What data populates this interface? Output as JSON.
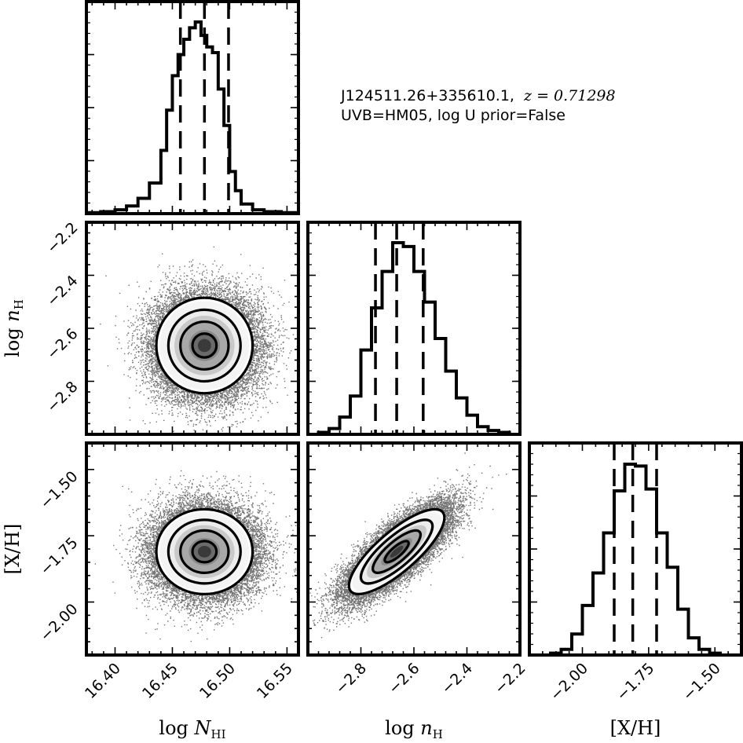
{
  "annotation": {
    "line1_object": "J124511.26+335610.1,",
    "line1_redshift": "z = 0.71298",
    "line2": "UVB=HM05, log U prior=False"
  },
  "chart_data": {
    "type": "corner",
    "parameters": [
      {
        "name": "logNHI",
        "label": "log N_HI",
        "label_main": "log N",
        "label_sub": "HI",
        "range": [
          16.375,
          16.56
        ],
        "ticks": [
          16.4,
          16.45,
          16.5,
          16.55
        ],
        "tick_labels": [
          "16.40",
          "16.45",
          "16.50",
          "16.55"
        ],
        "median": 16.478,
        "q16": 16.457,
        "q84": 16.499,
        "sigma": 0.021
      },
      {
        "name": "lognH",
        "label": "log n_H",
        "label_main": "log n",
        "label_sub": "H",
        "range": [
          -3.0,
          -2.2
        ],
        "ticks": [
          -2.8,
          -2.6,
          -2.4,
          -2.2
        ],
        "tick_labels": [
          "−2.8",
          "−2.6",
          "−2.4",
          "−2.2"
        ],
        "median": -2.665,
        "q16": -2.745,
        "q84": -2.565,
        "sigma": 0.09
      },
      {
        "name": "XH",
        "label": "[X/H]",
        "label_main": "[X/H]",
        "label_sub": "",
        "range": [
          -2.2,
          -1.4
        ],
        "ticks": [
          -2.0,
          -1.75,
          -1.5
        ],
        "tick_labels": [
          "−2.00",
          "−1.75",
          "−1.50"
        ],
        "median": -1.81,
        "q16": -1.88,
        "q84": -1.72,
        "sigma": 0.08
      }
    ],
    "y_tick_labels_row1": [
      "−2.2",
      "−2.4",
      "−2.6",
      "−2.8"
    ],
    "y_tick_labels_row2": [
      "−1.50",
      "−1.75",
      "−2.00"
    ],
    "correlations": {
      "XH_lognH": 0.8,
      "XH_logNHI": 0.0,
      "lognH_logNHI": 0.0
    },
    "histograms": {
      "logNHI": {
        "bin_edges": [
          16.375,
          16.3875,
          16.4,
          16.41,
          16.42,
          16.43,
          16.44,
          16.445,
          16.45,
          16.455,
          16.46,
          16.465,
          16.47,
          16.475,
          16.48,
          16.485,
          16.49,
          16.495,
          16.5,
          16.505,
          16.51,
          16.52,
          16.53,
          16.545,
          16.56
        ],
        "counts": [
          0.005,
          0.01,
          0.02,
          0.04,
          0.08,
          0.16,
          0.33,
          0.54,
          0.72,
          0.83,
          0.91,
          0.97,
          1.0,
          0.93,
          0.87,
          0.84,
          0.65,
          0.46,
          0.22,
          0.12,
          0.05,
          0.02,
          0.01,
          0.005
        ]
      },
      "lognH": {
        "bin_edges": [
          -3.0,
          -2.96,
          -2.92,
          -2.88,
          -2.84,
          -2.8,
          -2.76,
          -2.72,
          -2.68,
          -2.64,
          -2.6,
          -2.56,
          -2.52,
          -2.48,
          -2.44,
          -2.4,
          -2.36,
          -2.32,
          -2.28,
          -2.24,
          -2.2
        ],
        "counts": [
          0.0,
          0.01,
          0.03,
          0.09,
          0.2,
          0.44,
          0.66,
          0.85,
          1.0,
          0.98,
          0.85,
          0.69,
          0.5,
          0.33,
          0.19,
          0.1,
          0.04,
          0.02,
          0.01,
          0.0
        ]
      },
      "XH": {
        "bin_edges": [
          -2.2,
          -2.16,
          -2.12,
          -2.08,
          -2.04,
          -2.0,
          -1.96,
          -1.92,
          -1.88,
          -1.84,
          -1.8,
          -1.76,
          -1.72,
          -1.68,
          -1.64,
          -1.6,
          -1.56,
          -1.52,
          -1.48,
          -1.44,
          -1.4
        ],
        "counts": [
          0.0,
          0.0,
          0.01,
          0.03,
          0.11,
          0.26,
          0.43,
          0.64,
          0.86,
          1.0,
          0.99,
          0.87,
          0.64,
          0.46,
          0.24,
          0.09,
          0.03,
          0.01,
          0.0,
          0.0
        ]
      }
    },
    "contour_levels_sigma": [
      0.5,
      1.0,
      1.5,
      2.0
    ],
    "scatter": "posterior samples (grey points) outside the 2-sigma contour",
    "grid": false
  }
}
